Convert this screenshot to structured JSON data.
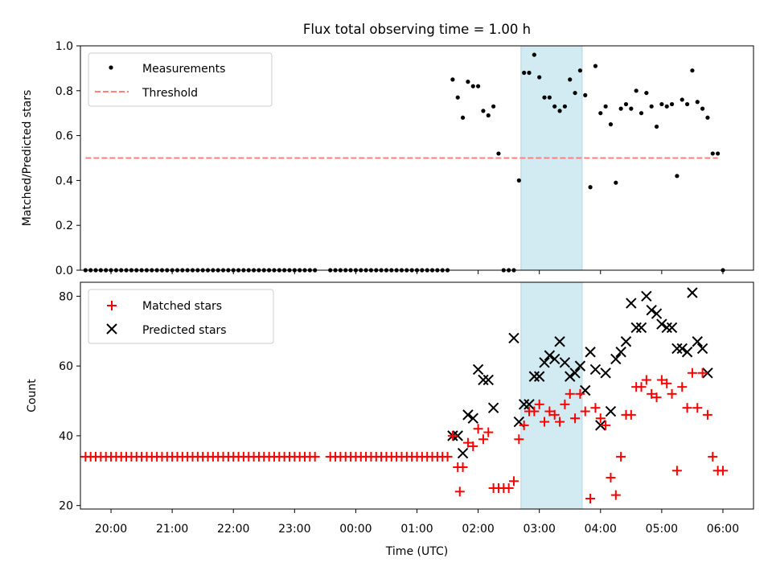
{
  "title": "Flux total observing time = 1.00 h",
  "colors": {
    "measurement": "#000000",
    "threshold": "#ff7f7f",
    "matched": "#ff0000",
    "predicted": "#000000",
    "shade": "#add8e6"
  },
  "chart_data": [
    {
      "type": "scatter",
      "ylabel": "Matched/Predicted stars",
      "ylim": [
        0.0,
        1.0
      ],
      "yticks": [
        "0.0",
        "0.2",
        "0.4",
        "0.6",
        "0.8",
        "1.0"
      ],
      "legend": {
        "position": "top-left",
        "entries": [
          "Measurements",
          "Threshold"
        ]
      },
      "threshold": {
        "value": 0.5,
        "x_start": "19:35",
        "x_end": "05:55"
      },
      "shaded_span": [
        "02:42",
        "03:42"
      ],
      "series": [
        {
          "name": "Measurements",
          "points": [
            [
              "19:35",
              0
            ],
            [
              "19:40",
              0
            ],
            [
              "19:45",
              0
            ],
            [
              "19:50",
              0
            ],
            [
              "19:55",
              0
            ],
            [
              "20:00",
              0
            ],
            [
              "20:05",
              0
            ],
            [
              "20:10",
              0
            ],
            [
              "20:15",
              0
            ],
            [
              "20:20",
              0
            ],
            [
              "20:25",
              0
            ],
            [
              "20:30",
              0
            ],
            [
              "20:35",
              0
            ],
            [
              "20:40",
              0
            ],
            [
              "20:45",
              0
            ],
            [
              "20:50",
              0
            ],
            [
              "20:55",
              0
            ],
            [
              "21:00",
              0
            ],
            [
              "21:05",
              0
            ],
            [
              "21:10",
              0
            ],
            [
              "21:15",
              0
            ],
            [
              "21:20",
              0
            ],
            [
              "21:25",
              0
            ],
            [
              "21:30",
              0
            ],
            [
              "21:35",
              0
            ],
            [
              "21:40",
              0
            ],
            [
              "21:45",
              0
            ],
            [
              "21:50",
              0
            ],
            [
              "21:55",
              0
            ],
            [
              "22:00",
              0
            ],
            [
              "22:05",
              0
            ],
            [
              "22:10",
              0
            ],
            [
              "22:15",
              0
            ],
            [
              "22:20",
              0
            ],
            [
              "22:25",
              0
            ],
            [
              "22:30",
              0
            ],
            [
              "22:35",
              0
            ],
            [
              "22:40",
              0
            ],
            [
              "22:45",
              0
            ],
            [
              "22:50",
              0
            ],
            [
              "22:55",
              0
            ],
            [
              "23:00",
              0
            ],
            [
              "23:05",
              0
            ],
            [
              "23:10",
              0
            ],
            [
              "23:15",
              0
            ],
            [
              "23:20",
              0
            ],
            [
              "23:35",
              0
            ],
            [
              "23:40",
              0
            ],
            [
              "23:45",
              0
            ],
            [
              "23:50",
              0
            ],
            [
              "23:55",
              0
            ],
            [
              "00:00",
              0
            ],
            [
              "00:05",
              0
            ],
            [
              "00:10",
              0
            ],
            [
              "00:15",
              0
            ],
            [
              "00:20",
              0
            ],
            [
              "00:25",
              0
            ],
            [
              "00:30",
              0
            ],
            [
              "00:35",
              0
            ],
            [
              "00:40",
              0
            ],
            [
              "00:45",
              0
            ],
            [
              "00:50",
              0
            ],
            [
              "00:55",
              0
            ],
            [
              "01:00",
              0
            ],
            [
              "01:05",
              0
            ],
            [
              "01:10",
              0
            ],
            [
              "01:15",
              0
            ],
            [
              "01:20",
              0
            ],
            [
              "01:25",
              0
            ],
            [
              "01:30",
              0
            ],
            [
              "01:35",
              0.85
            ],
            [
              "01:40",
              0.77
            ],
            [
              "01:45",
              0.68
            ],
            [
              "01:50",
              0.84
            ],
            [
              "01:55",
              0.82
            ],
            [
              "02:00",
              0.82
            ],
            [
              "02:05",
              0.71
            ],
            [
              "02:10",
              0.69
            ],
            [
              "02:15",
              0.73
            ],
            [
              "02:20",
              0.52
            ],
            [
              "02:25",
              0
            ],
            [
              "02:30",
              0
            ],
            [
              "02:35",
              0
            ],
            [
              "02:40",
              0.4
            ],
            [
              "02:45",
              0.88
            ],
            [
              "02:50",
              0.88
            ],
            [
              "02:55",
              0.96
            ],
            [
              "03:00",
              0.86
            ],
            [
              "03:05",
              0.77
            ],
            [
              "03:10",
              0.77
            ],
            [
              "03:15",
              0.73
            ],
            [
              "03:20",
              0.71
            ],
            [
              "03:25",
              0.73
            ],
            [
              "03:30",
              0.85
            ],
            [
              "03:35",
              0.79
            ],
            [
              "03:40",
              0.89
            ],
            [
              "03:45",
              0.78
            ],
            [
              "03:50",
              0.37
            ],
            [
              "03:55",
              0.91
            ],
            [
              "04:00",
              0.7
            ],
            [
              "04:05",
              0.73
            ],
            [
              "04:10",
              0.65
            ],
            [
              "04:15",
              0.39
            ],
            [
              "04:20",
              0.72
            ],
            [
              "04:25",
              0.74
            ],
            [
              "04:30",
              0.72
            ],
            [
              "04:35",
              0.8
            ],
            [
              "04:40",
              0.7
            ],
            [
              "04:45",
              0.79
            ],
            [
              "04:50",
              0.73
            ],
            [
              "04:55",
              0.64
            ],
            [
              "05:00",
              0.74
            ],
            [
              "05:05",
              0.73
            ],
            [
              "05:10",
              0.74
            ],
            [
              "05:15",
              0.42
            ],
            [
              "05:20",
              0.76
            ],
            [
              "05:25",
              0.74
            ],
            [
              "05:30",
              0.89
            ],
            [
              "05:35",
              0.75
            ],
            [
              "05:40",
              0.72
            ],
            [
              "05:45",
              0.68
            ],
            [
              "05:50",
              0.52
            ],
            [
              "05:55",
              0.52
            ],
            [
              "06:00",
              0
            ]
          ]
        }
      ]
    },
    {
      "type": "scatter",
      "xlabel": "Time (UTC)",
      "ylabel": "Count",
      "ylim": [
        19,
        84
      ],
      "yticks": [
        "20",
        "40",
        "60",
        "80"
      ],
      "xticks": [
        "20:00",
        "21:00",
        "22:00",
        "23:00",
        "00:00",
        "01:00",
        "02:00",
        "03:00",
        "04:00",
        "05:00",
        "06:00"
      ],
      "legend": {
        "position": "top-left",
        "entries": [
          "Matched stars",
          "Predicted stars"
        ]
      },
      "shaded_span": [
        "02:42",
        "03:42"
      ],
      "matched_const_before_0135": {
        "value": 34,
        "x_first": "19:35",
        "x_last_before_gap": "23:20",
        "x_after_gap": "23:35",
        "x_last": "01:30"
      },
      "series": [
        {
          "name": "Matched stars",
          "points": [
            [
              "01:35",
              40
            ],
            [
              "01:40",
              31
            ],
            [
              "01:42",
              24
            ],
            [
              "01:45",
              31
            ],
            [
              "01:50",
              38
            ],
            [
              "01:55",
              37
            ],
            [
              "02:00",
              42
            ],
            [
              "02:05",
              39
            ],
            [
              "02:10",
              41
            ],
            [
              "02:15",
              25
            ],
            [
              "02:20",
              25
            ],
            [
              "02:25",
              25
            ],
            [
              "02:30",
              25
            ],
            [
              "02:35",
              27
            ],
            [
              "02:40",
              39
            ],
            [
              "02:45",
              43
            ],
            [
              "02:50",
              47
            ],
            [
              "02:55",
              47
            ],
            [
              "03:00",
              49
            ],
            [
              "03:05",
              44
            ],
            [
              "03:10",
              47
            ],
            [
              "03:15",
              46
            ],
            [
              "03:20",
              44
            ],
            [
              "03:25",
              49
            ],
            [
              "03:30",
              52
            ],
            [
              "03:35",
              45
            ],
            [
              "03:40",
              52
            ],
            [
              "03:45",
              47
            ],
            [
              "03:50",
              22
            ],
            [
              "03:55",
              48
            ],
            [
              "04:00",
              45
            ],
            [
              "04:05",
              43
            ],
            [
              "04:10",
              28
            ],
            [
              "04:15",
              23
            ],
            [
              "04:20",
              34
            ],
            [
              "04:25",
              46
            ],
            [
              "04:30",
              46
            ],
            [
              "04:35",
              54
            ],
            [
              "04:40",
              54
            ],
            [
              "04:45",
              56
            ],
            [
              "04:50",
              52
            ],
            [
              "04:55",
              51
            ],
            [
              "05:00",
              56
            ],
            [
              "05:05",
              55
            ],
            [
              "05:10",
              52
            ],
            [
              "05:15",
              30
            ],
            [
              "05:20",
              54
            ],
            [
              "05:25",
              48
            ],
            [
              "05:30",
              58
            ],
            [
              "05:35",
              48
            ],
            [
              "05:40",
              58
            ],
            [
              "05:45",
              46
            ],
            [
              "05:50",
              34
            ],
            [
              "05:55",
              30
            ],
            [
              "06:00",
              30
            ]
          ]
        },
        {
          "name": "Predicted stars",
          "points": [
            [
              "01:35",
              40
            ],
            [
              "01:40",
              40
            ],
            [
              "01:45",
              35
            ],
            [
              "01:50",
              46
            ],
            [
              "01:55",
              45
            ],
            [
              "02:00",
              59
            ],
            [
              "02:05",
              56
            ],
            [
              "02:10",
              56
            ],
            [
              "02:15",
              48
            ],
            [
              "02:35",
              68
            ],
            [
              "02:40",
              44
            ],
            [
              "02:45",
              49
            ],
            [
              "02:50",
              49
            ],
            [
              "02:55",
              57
            ],
            [
              "03:00",
              57
            ],
            [
              "03:05",
              61
            ],
            [
              "03:10",
              63
            ],
            [
              "03:15",
              62
            ],
            [
              "03:20",
              67
            ],
            [
              "03:25",
              61
            ],
            [
              "03:30",
              57
            ],
            [
              "03:35",
              58
            ],
            [
              "03:40",
              60
            ],
            [
              "03:45",
              53
            ],
            [
              "03:50",
              64
            ],
            [
              "03:55",
              59
            ],
            [
              "04:00",
              43
            ],
            [
              "04:05",
              58
            ],
            [
              "04:10",
              47
            ],
            [
              "04:15",
              62
            ],
            [
              "04:20",
              64
            ],
            [
              "04:25",
              67
            ],
            [
              "04:30",
              78
            ],
            [
              "04:35",
              71
            ],
            [
              "04:40",
              71
            ],
            [
              "04:45",
              80
            ],
            [
              "04:50",
              76
            ],
            [
              "04:55",
              75
            ],
            [
              "05:00",
              72
            ],
            [
              "05:05",
              71
            ],
            [
              "05:10",
              71
            ],
            [
              "05:15",
              65
            ],
            [
              "05:20",
              65
            ],
            [
              "05:25",
              64
            ],
            [
              "05:30",
              81
            ],
            [
              "05:35",
              67
            ],
            [
              "05:40",
              65
            ],
            [
              "05:45",
              58
            ]
          ]
        }
      ]
    }
  ]
}
